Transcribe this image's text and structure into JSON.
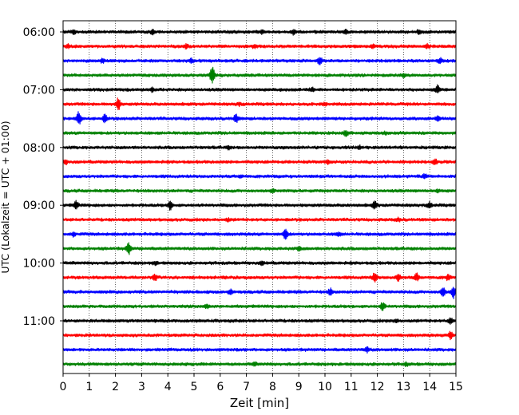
{
  "chart_data": {
    "type": "line",
    "title": "",
    "xlabel": "Zeit  [min]",
    "ylabel": "UTC (Lokalzeit = UTC + 01:00)",
    "xlim": [
      0,
      15
    ],
    "x_ticks": [
      "0",
      "1",
      "2",
      "3",
      "4",
      "5",
      "6",
      "7",
      "8",
      "9",
      "10",
      "11",
      "12",
      "13",
      "14",
      "15"
    ],
    "y_ticks": [
      "06:00",
      "07:00",
      "08:00",
      "09:00",
      "10:00",
      "11:00"
    ],
    "grid": "vertical dotted",
    "trace_interval_min": 15,
    "trace_colors_cycle": [
      "#000000",
      "#ff0000",
      "#0000ff",
      "#008000"
    ],
    "series": [
      {
        "start": "06:00",
        "events": [
          {
            "t": 0.4,
            "amp": 0.3
          },
          {
            "t": 3.4,
            "amp": 0.3
          },
          {
            "t": 7.6,
            "amp": 0.3
          },
          {
            "t": 8.8,
            "amp": 0.35
          },
          {
            "t": 10.8,
            "amp": 0.3
          },
          {
            "t": 13.6,
            "amp": 0.35
          }
        ]
      },
      {
        "start": "06:15",
        "events": [
          {
            "t": 0.2,
            "amp": 0.25
          },
          {
            "t": 4.7,
            "amp": 0.3
          },
          {
            "t": 7.3,
            "amp": 0.25
          },
          {
            "t": 11.8,
            "amp": 0.25
          },
          {
            "t": 13.9,
            "amp": 0.25
          }
        ]
      },
      {
        "start": "06:30",
        "events": [
          {
            "t": 1.5,
            "amp": 0.35
          },
          {
            "t": 4.9,
            "amp": 0.3
          },
          {
            "t": 9.8,
            "amp": 0.6
          },
          {
            "t": 14.4,
            "amp": 0.4
          }
        ]
      },
      {
        "start": "06:45",
        "events": [
          {
            "t": 5.7,
            "amp": 1.4
          },
          {
            "t": 13.0,
            "amp": 0.25
          }
        ]
      },
      {
        "start": "07:00",
        "events": [
          {
            "t": 3.4,
            "amp": 0.3
          },
          {
            "t": 9.5,
            "amp": 0.3
          },
          {
            "t": 14.3,
            "amp": 0.6
          }
        ]
      },
      {
        "start": "07:15",
        "events": [
          {
            "t": 2.1,
            "amp": 0.9
          },
          {
            "t": 6.7,
            "amp": 0.2
          },
          {
            "t": 10.0,
            "amp": 0.2
          }
        ]
      },
      {
        "start": "07:30",
        "events": [
          {
            "t": 0.6,
            "amp": 1.1
          },
          {
            "t": 1.6,
            "amp": 0.6
          },
          {
            "t": 6.6,
            "amp": 0.65
          },
          {
            "t": 14.3,
            "amp": 0.3
          }
        ]
      },
      {
        "start": "07:45",
        "events": [
          {
            "t": 10.8,
            "amp": 0.45
          },
          {
            "t": 12.3,
            "amp": 0.2
          }
        ]
      },
      {
        "start": "08:00",
        "events": [
          {
            "t": 6.3,
            "amp": 0.2
          },
          {
            "t": 11.3,
            "amp": 0.2
          }
        ]
      },
      {
        "start": "08:15",
        "events": [
          {
            "t": 0.1,
            "amp": 0.3
          },
          {
            "t": 10.1,
            "amp": 0.25
          },
          {
            "t": 14.2,
            "amp": 0.3
          }
        ]
      },
      {
        "start": "08:30",
        "events": [
          {
            "t": 6.8,
            "amp": 0.2
          },
          {
            "t": 13.8,
            "amp": 0.3
          }
        ]
      },
      {
        "start": "08:45",
        "events": [
          {
            "t": 8.0,
            "amp": 0.2
          },
          {
            "t": 14.3,
            "amp": 0.25
          }
        ]
      },
      {
        "start": "09:00",
        "events": [
          {
            "t": 0.5,
            "amp": 0.6
          },
          {
            "t": 4.1,
            "amp": 0.65
          },
          {
            "t": 11.9,
            "amp": 0.6
          },
          {
            "t": 14.0,
            "amp": 0.4
          }
        ]
      },
      {
        "start": "09:15",
        "events": [
          {
            "t": 6.3,
            "amp": 0.2
          },
          {
            "t": 12.8,
            "amp": 0.25
          }
        ]
      },
      {
        "start": "09:30",
        "events": [
          {
            "t": 0.4,
            "amp": 0.3
          },
          {
            "t": 8.5,
            "amp": 0.9
          },
          {
            "t": 10.5,
            "amp": 0.3
          }
        ]
      },
      {
        "start": "09:45",
        "events": [
          {
            "t": 2.5,
            "amp": 1.0
          },
          {
            "t": 9.0,
            "amp": 0.3
          }
        ]
      },
      {
        "start": "10:00",
        "events": [
          {
            "t": 3.5,
            "amp": 0.25
          },
          {
            "t": 7.6,
            "amp": 0.25
          }
        ]
      },
      {
        "start": "10:15",
        "events": [
          {
            "t": 3.5,
            "amp": 0.45
          },
          {
            "t": 11.9,
            "amp": 0.7
          },
          {
            "t": 12.8,
            "amp": 0.55
          },
          {
            "t": 13.5,
            "amp": 0.6
          },
          {
            "t": 14.7,
            "amp": 0.45
          }
        ]
      },
      {
        "start": "10:30",
        "events": [
          {
            "t": 6.4,
            "amp": 0.45
          },
          {
            "t": 10.2,
            "amp": 0.5
          },
          {
            "t": 14.5,
            "amp": 0.8
          },
          {
            "t": 14.9,
            "amp": 0.9
          }
        ]
      },
      {
        "start": "10:45",
        "events": [
          {
            "t": 5.5,
            "amp": 0.25
          },
          {
            "t": 12.2,
            "amp": 0.65
          }
        ]
      },
      {
        "start": "11:00",
        "events": [
          {
            "t": 12.7,
            "amp": 0.25
          },
          {
            "t": 14.8,
            "amp": 0.45
          }
        ]
      },
      {
        "start": "11:15",
        "events": [
          {
            "t": 14.8,
            "amp": 0.6
          }
        ]
      },
      {
        "start": "11:30",
        "events": [
          {
            "t": 11.6,
            "amp": 0.35
          }
        ]
      },
      {
        "start": "11:45",
        "events": [
          {
            "t": 7.3,
            "amp": 0.2
          },
          {
            "t": 13.1,
            "amp": 0.2
          }
        ]
      }
    ]
  }
}
